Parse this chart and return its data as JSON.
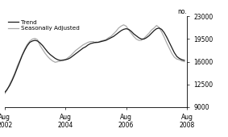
{
  "title": "",
  "ylabel": "no.",
  "xlim_start": 0,
  "xlim_end": 72,
  "ylim": [
    9000,
    23000
  ],
  "yticks": [
    9000,
    12500,
    16000,
    19500,
    23000
  ],
  "xtick_positions": [
    0,
    24,
    48,
    72
  ],
  "xtick_labels": [
    "Aug\n2002",
    "Aug\n2004",
    "Aug\n2006",
    "Aug\n2008"
  ],
  "legend_entries": [
    "Trend",
    "Seasonally Adjusted"
  ],
  "trend_color": "#1a1a1a",
  "sa_color": "#aaaaaa",
  "trend_lw": 0.9,
  "sa_lw": 0.9,
  "trend_data": [
    11200,
    11700,
    12300,
    13100,
    14000,
    15000,
    16000,
    17000,
    17800,
    18500,
    19000,
    19200,
    19300,
    19200,
    18900,
    18500,
    18000,
    17500,
    17100,
    16800,
    16500,
    16300,
    16200,
    16200,
    16300,
    16400,
    16600,
    16900,
    17200,
    17500,
    17800,
    18100,
    18300,
    18600,
    18800,
    18900,
    19000,
    19000,
    19100,
    19200,
    19300,
    19500,
    19700,
    19900,
    20200,
    20500,
    20800,
    21000,
    21100,
    21000,
    20700,
    20300,
    20000,
    19700,
    19500,
    19500,
    19700,
    20000,
    20400,
    20800,
    21100,
    21200,
    21000,
    20500,
    19800,
    19000,
    18200,
    17400,
    16800,
    16500,
    16300,
    16200
  ],
  "sa_data": [
    11000,
    11600,
    12500,
    13300,
    14200,
    15300,
    16200,
    17100,
    18000,
    18700,
    19200,
    19500,
    19600,
    19400,
    18500,
    17900,
    17300,
    16800,
    16400,
    16100,
    15900,
    16000,
    16100,
    16300,
    16300,
    16600,
    16900,
    17300,
    17700,
    18000,
    18300,
    18600,
    18800,
    19000,
    19100,
    19100,
    18900,
    19000,
    19200,
    19300,
    19400,
    19700,
    19900,
    20300,
    20700,
    21200,
    21500,
    21700,
    21500,
    20900,
    20400,
    19900,
    19500,
    19300,
    19300,
    19600,
    20000,
    20400,
    20900,
    21200,
    21600,
    21300,
    20600,
    19800,
    18900,
    18100,
    17300,
    16700,
    16400,
    16300,
    16100,
    16000
  ],
  "background_color": "#ffffff",
  "spine_color": "#000000"
}
